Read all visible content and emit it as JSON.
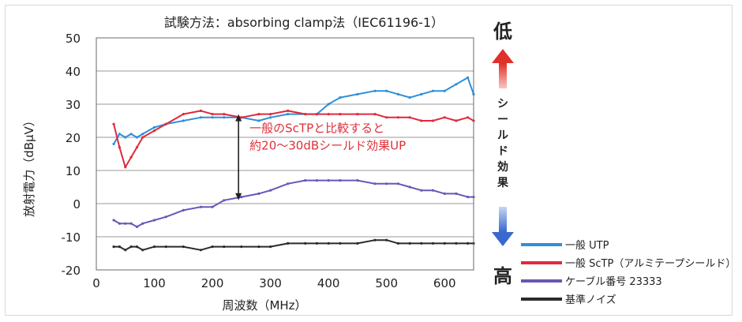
{
  "chart_data": {
    "type": "line",
    "title": "試験方法：absorbing clamp法（IEC61196-1）",
    "xlabel": "周波数（MHz）",
    "ylabel": "放射電力（dBμV）",
    "xlim": [
      0,
      650
    ],
    "ylim": [
      -20,
      50
    ],
    "x_ticks": [
      0,
      100,
      200,
      300,
      400,
      500,
      600
    ],
    "y_ticks": [
      -20,
      -10,
      0,
      10,
      20,
      30,
      40,
      50
    ],
    "grid": "horizontal",
    "legend_position": "right-bottom",
    "annotation": {
      "lines": [
        "一般のScTPと比較すると",
        "約20～30dBシールド効果UP"
      ],
      "arrow_x": 245,
      "arrow_from": 27,
      "arrow_to": 1
    },
    "side_scale": {
      "top": "低",
      "label": "シールド効果",
      "bottom": "高"
    },
    "series": [
      {
        "name": "一般 UTP",
        "color": "#2f8fd8",
        "x": [
          30,
          40,
          50,
          60,
          70,
          80,
          100,
          120,
          150,
          180,
          200,
          220,
          250,
          280,
          300,
          330,
          360,
          380,
          400,
          420,
          450,
          480,
          500,
          520,
          540,
          560,
          580,
          600,
          620,
          640,
          650
        ],
        "y": [
          18,
          21,
          20,
          21,
          20,
          21,
          23,
          24,
          25,
          26,
          26,
          26,
          26,
          25,
          26,
          27,
          27,
          27,
          30,
          32,
          33,
          34,
          34,
          33,
          32,
          33,
          34,
          34,
          36,
          38,
          33
        ]
      },
      {
        "name": "一般 ScTP（アルミテープシールド）",
        "color": "#e02a3a",
        "x": [
          30,
          40,
          50,
          60,
          70,
          80,
          100,
          120,
          150,
          180,
          200,
          220,
          250,
          280,
          300,
          330,
          360,
          380,
          400,
          420,
          450,
          480,
          500,
          520,
          540,
          560,
          580,
          600,
          620,
          640,
          650
        ],
        "y": [
          24,
          17,
          11,
          14,
          17,
          20,
          22,
          24,
          27,
          28,
          27,
          27,
          26,
          27,
          27,
          28,
          27,
          27,
          27,
          27,
          27,
          27,
          26,
          26,
          26,
          25,
          25,
          26,
          25,
          26,
          25
        ]
      },
      {
        "name": "ケーブル番号 23333",
        "color": "#6a55b8",
        "x": [
          30,
          40,
          50,
          60,
          70,
          80,
          100,
          120,
          150,
          180,
          200,
          220,
          250,
          280,
          300,
          330,
          360,
          380,
          400,
          420,
          450,
          480,
          500,
          520,
          540,
          560,
          580,
          600,
          620,
          640,
          650
        ],
        "y": [
          -5,
          -6,
          -6,
          -6,
          -7,
          -6,
          -5,
          -4,
          -2,
          -1,
          -1,
          1,
          2,
          3,
          4,
          6,
          7,
          7,
          7,
          7,
          7,
          6,
          6,
          6,
          5,
          4,
          4,
          3,
          3,
          2,
          2
        ]
      },
      {
        "name": "基準ノイズ",
        "color": "#2b2b2b",
        "x": [
          30,
          40,
          50,
          60,
          70,
          80,
          100,
          120,
          150,
          180,
          200,
          220,
          250,
          280,
          300,
          330,
          360,
          380,
          400,
          420,
          450,
          480,
          500,
          520,
          540,
          560,
          580,
          600,
          620,
          640,
          650
        ],
        "y": [
          -13,
          -13,
          -14,
          -13,
          -13,
          -14,
          -13,
          -13,
          -13,
          -14,
          -13,
          -13,
          -13,
          -13,
          -13,
          -12,
          -12,
          -12,
          -12,
          -12,
          -12,
          -11,
          -11,
          -12,
          -12,
          -12,
          -12,
          -12,
          -12,
          -12,
          -12
        ]
      }
    ]
  }
}
